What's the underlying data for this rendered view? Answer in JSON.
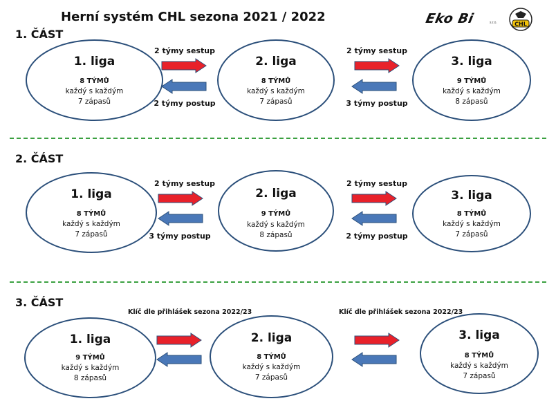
{
  "title": "Herní systém CHL sezona 2021 / 2022",
  "logo": {
    "name": "Eko Bi",
    "suffix": "s.r.o.",
    "badge": "CHL"
  },
  "colors": {
    "down_arrow": "#e8212a",
    "up_arrow": "#4a78b8",
    "ellipse_border": "#2b4f7a",
    "divider": "#3aa040"
  },
  "sections": [
    {
      "label": "1. ČÁST",
      "leagues": [
        {
          "name": "1. liga",
          "teams": "8 TÝMŮ",
          "format": "každý s každým",
          "matches": "7 zápasů"
        },
        {
          "name": "2. liga",
          "teams": "8 TÝMŮ",
          "format": "každý s každým",
          "matches": "7 zápasů"
        },
        {
          "name": "3. liga",
          "teams": "9 TÝMŮ",
          "format": "každý s každým",
          "matches": "8 zápasů"
        }
      ],
      "transitions": [
        {
          "down": "2 týmy sestup",
          "up": "2 týmy postup"
        },
        {
          "down": "2 týmy sestup",
          "up": "3 týmy postup"
        }
      ]
    },
    {
      "label": "2. ČÁST",
      "leagues": [
        {
          "name": "1. liga",
          "teams": "8 TÝMŮ",
          "format": "každý s každým",
          "matches": "7 zápasů"
        },
        {
          "name": "2. liga",
          "teams": "9 TÝMŮ",
          "format": "každý s každým",
          "matches": "8 zápasů"
        },
        {
          "name": "3. liga",
          "teams": "8 TÝMŮ",
          "format": "každý s každým",
          "matches": "7 zápasů"
        }
      ],
      "transitions": [
        {
          "down": "2 týmy sestup",
          "up": "3 týmy postup"
        },
        {
          "down": "2 týmy sestup",
          "up": "2 týmy postup"
        }
      ]
    },
    {
      "label": "3. ČÁST",
      "leagues": [
        {
          "name": "1. liga",
          "teams": "9 TÝMŮ",
          "format": "každý s každým",
          "matches": "8 zápasů"
        },
        {
          "name": "2. liga",
          "teams": "8 TÝMŮ",
          "format": "každý s každým",
          "matches": "7 zápasů"
        },
        {
          "name": "3. liga",
          "teams": "8 TÝMŮ",
          "format": "každý s každým",
          "matches": "7 zápasů"
        }
      ],
      "transitions": [
        {
          "key": "Klíč dle přihlášek sezona 2022/23"
        },
        {
          "key": "Klíč dle přihlášek sezona 2022/23"
        }
      ]
    }
  ]
}
